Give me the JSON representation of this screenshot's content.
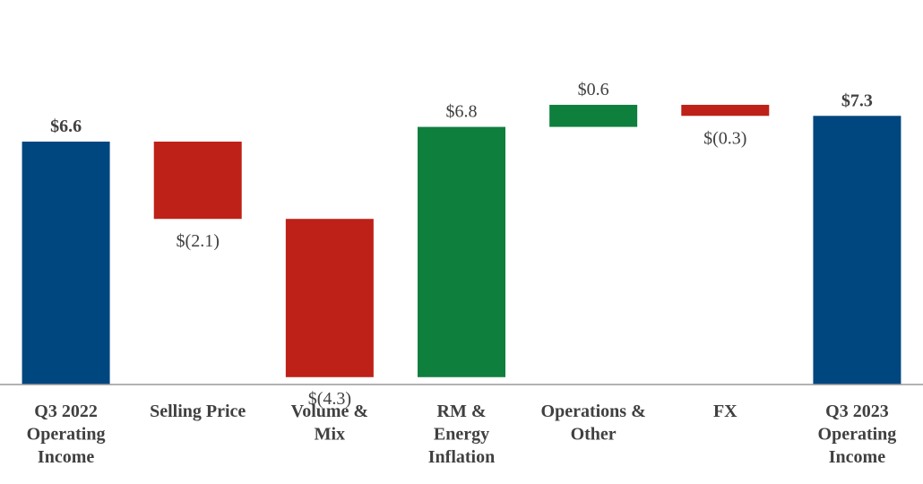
{
  "chart_data": {
    "type": "waterfall",
    "title": "",
    "xlabel": "",
    "ylabel": "",
    "ylim": [
      0,
      9.4
    ],
    "grid": false,
    "legend": "none",
    "colors": {
      "total": "#00467f",
      "decrease": "#be2117",
      "increase": "#0f7f3e",
      "axis": "#999999"
    },
    "bars": [
      {
        "category": "Q3 2022 Operating Income",
        "label_lines": [
          "Q3 2022",
          "Operating",
          "Income"
        ],
        "kind": "total",
        "value": 6.6,
        "label": "$6.6",
        "bold": true
      },
      {
        "category": "Selling Price",
        "label_lines": [
          "Selling Price"
        ],
        "kind": "decrease",
        "value": -2.1,
        "label": "$(2.1)",
        "bold": false
      },
      {
        "category": "Volume & Mix",
        "label_lines": [
          "Volume &",
          "Mix"
        ],
        "kind": "decrease",
        "value": -4.3,
        "label": "$(4.3)",
        "bold": false
      },
      {
        "category": "RM & Energy Inflation",
        "label_lines": [
          "RM &",
          "Energy",
          "Inflation"
        ],
        "kind": "increase",
        "value": 6.8,
        "label": "$6.8",
        "bold": false
      },
      {
        "category": "Operations & Other",
        "label_lines": [
          "Operations &",
          "Other"
        ],
        "kind": "increase",
        "value": 0.6,
        "label": "$0.6",
        "bold": false
      },
      {
        "category": "FX",
        "label_lines": [
          "FX"
        ],
        "kind": "decrease",
        "value": -0.3,
        "label": "$(0.3)",
        "bold": false
      },
      {
        "category": "Q3 2023 Operating Income",
        "label_lines": [
          "Q3 2023",
          "Operating",
          "Income"
        ],
        "kind": "total",
        "value": 7.3,
        "label": "$7.3",
        "bold": true
      }
    ]
  }
}
